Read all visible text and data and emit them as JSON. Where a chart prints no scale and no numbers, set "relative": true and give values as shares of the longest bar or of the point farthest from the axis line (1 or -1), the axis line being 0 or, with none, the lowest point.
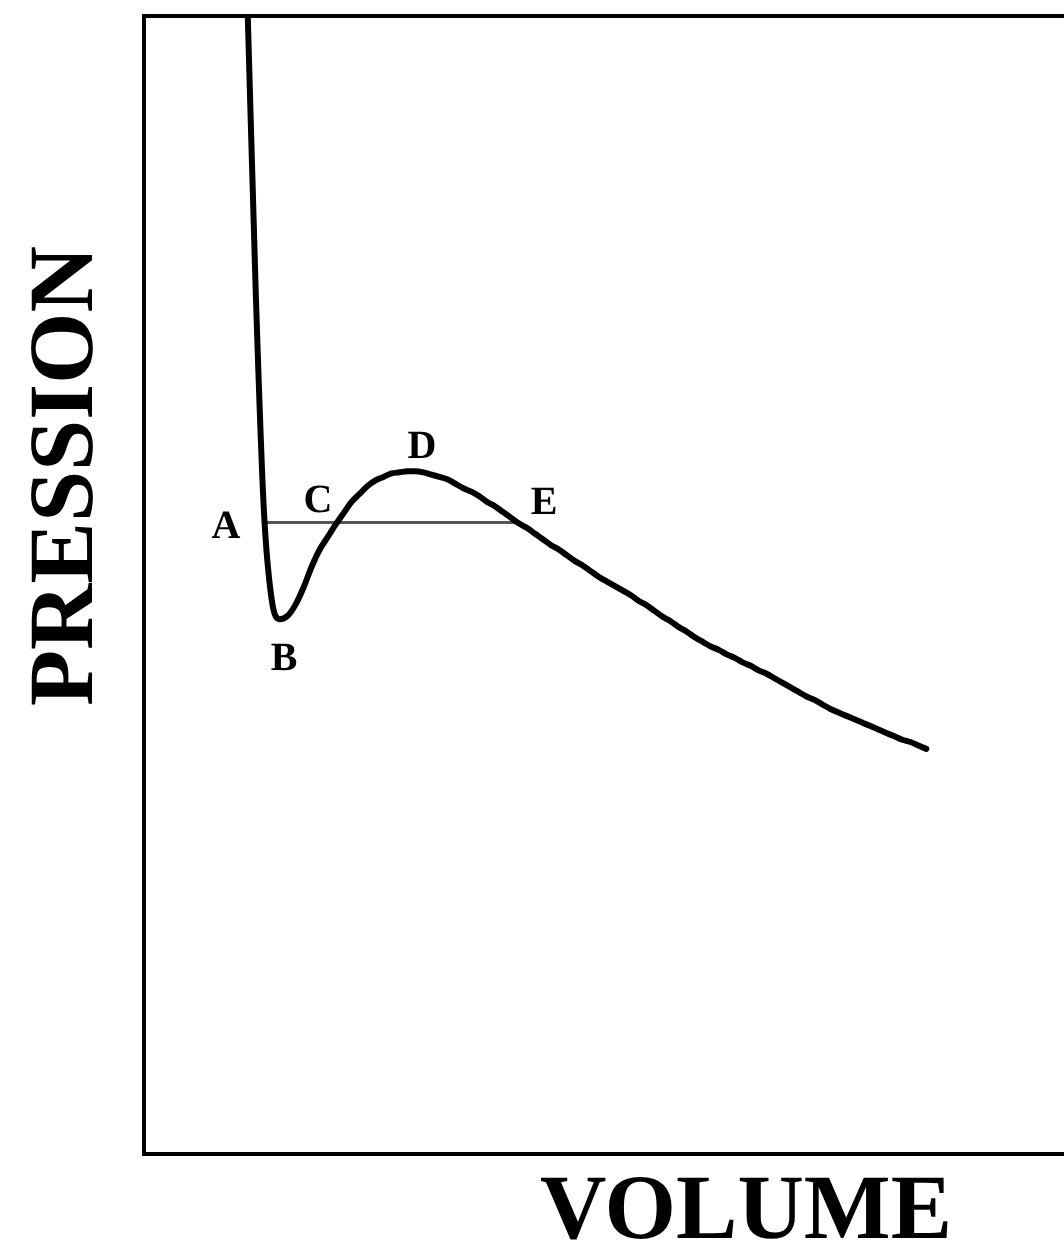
{
  "chart_data": {
    "type": "line",
    "xlabel": "VOLUME",
    "ylabel": "PRESSION",
    "relative": true,
    "line_style": "solid",
    "categories": [
      null,
      null,
      null,
      null,
      null,
      null,
      null,
      null,
      null,
      null,
      null,
      null,
      null,
      null,
      null,
      null,
      null,
      null,
      null,
      null,
      null,
      null,
      null,
      null,
      null,
      null,
      null,
      null,
      null,
      null,
      null,
      null,
      null,
      null,
      null,
      null,
      null,
      null,
      null,
      null,
      null,
      null,
      null,
      null,
      null,
      null,
      null,
      null,
      null,
      null,
      null,
      null,
      null,
      null,
      null,
      null,
      null,
      null,
      null,
      null,
      null,
      null,
      null,
      null,
      null,
      null,
      null,
      null,
      null,
      null,
      null,
      null,
      null,
      null,
      null,
      null,
      null,
      null,
      null,
      null,
      null,
      null,
      null,
      null,
      null,
      null,
      null,
      null,
      null,
      null,
      null,
      null,
      null,
      null,
      null,
      null,
      null,
      null,
      null,
      null,
      null,
      null,
      null,
      null,
      null,
      null,
      null,
      null,
      null,
      null,
      null,
      null,
      null,
      null,
      null,
      null
    ],
    "series": [
      {
        "color": "#000000",
        "values": [
          null,
          null,
          null,
          null,
          null,
          null,
          null,
          null,
          null,
          null,
          null,
          null,
          null,
          1,
          0.757,
          0.568,
          0.487,
          0.47,
          0.473,
          0.483,
          0.498,
          0.516,
          0.531,
          0.542,
          0.553,
          0.563,
          0.573,
          0.58,
          0.587,
          0.592,
          0.595,
          0.598,
          0.599,
          0.6,
          0.6,
          0.599,
          0.597,
          0.595,
          0.593,
          0.589,
          0.585,
          0.582,
          0.578,
          0.573,
          0.569,
          0.564,
          0.559,
          0.554,
          0.55,
          0.545,
          0.54,
          0.535,
          0.531,
          0.526,
          0.521,
          0.517,
          0.512,
          0.507,
          0.503,
          0.499,
          0.495,
          0.491,
          0.486,
          0.482,
          0.477,
          0.472,
          0.468,
          0.463,
          0.459,
          0.454,
          0.45,
          0.446,
          0.443,
          0.439,
          0.436,
          0.432,
          0.429,
          0.425,
          0.422,
          0.418,
          0.414,
          0.41,
          0.406,
          0.402,
          0.399,
          0.395,
          0.391,
          0.388,
          0.385,
          0.382,
          0.379,
          0.376,
          0.373,
          0.37,
          0.367,
          0.364,
          0.362,
          0.359,
          0.356,
          null,
          null,
          null,
          null,
          null,
          null,
          null,
          null,
          null,
          null,
          null,
          null,
          null,
          null,
          null,
          null,
          null
        ]
      },
      {
        "color": "#555555",
        "values": [
          null,
          null,
          null,
          null,
          null,
          null,
          null,
          null,
          null,
          null,
          null,
          null,
          null,
          null,
          null,
          0.555,
          0.555,
          0.555,
          0.555,
          0.555,
          0.555,
          0.555,
          0.555,
          0.555,
          0.555,
          0.555,
          0.555,
          0.555,
          0.555,
          0.555,
          0.555,
          0.555,
          0.555,
          0.555,
          0.555,
          0.555,
          0.555,
          0.555,
          0.555,
          0.555,
          0.555,
          0.555,
          0.555,
          0.555,
          0.555,
          0.555,
          0.555,
          0.555,
          null,
          null,
          null,
          null,
          null,
          null,
          null,
          null,
          null,
          null,
          null,
          null,
          null,
          null,
          null,
          null,
          null,
          null,
          null,
          null,
          null,
          null,
          null,
          null,
          null,
          null,
          null,
          null,
          null,
          null,
          null,
          null,
          null,
          null,
          null,
          null,
          null,
          null,
          null,
          null,
          null,
          null,
          null,
          null,
          null,
          null,
          null,
          null,
          null,
          null,
          null,
          null,
          null,
          null,
          null,
          null,
          null,
          null,
          null,
          null,
          null,
          null,
          null,
          null,
          null,
          null,
          null,
          null
        ]
      }
    ],
    "annotations": [
      "A",
      "B",
      "C",
      "D",
      "E"
    ]
  }
}
